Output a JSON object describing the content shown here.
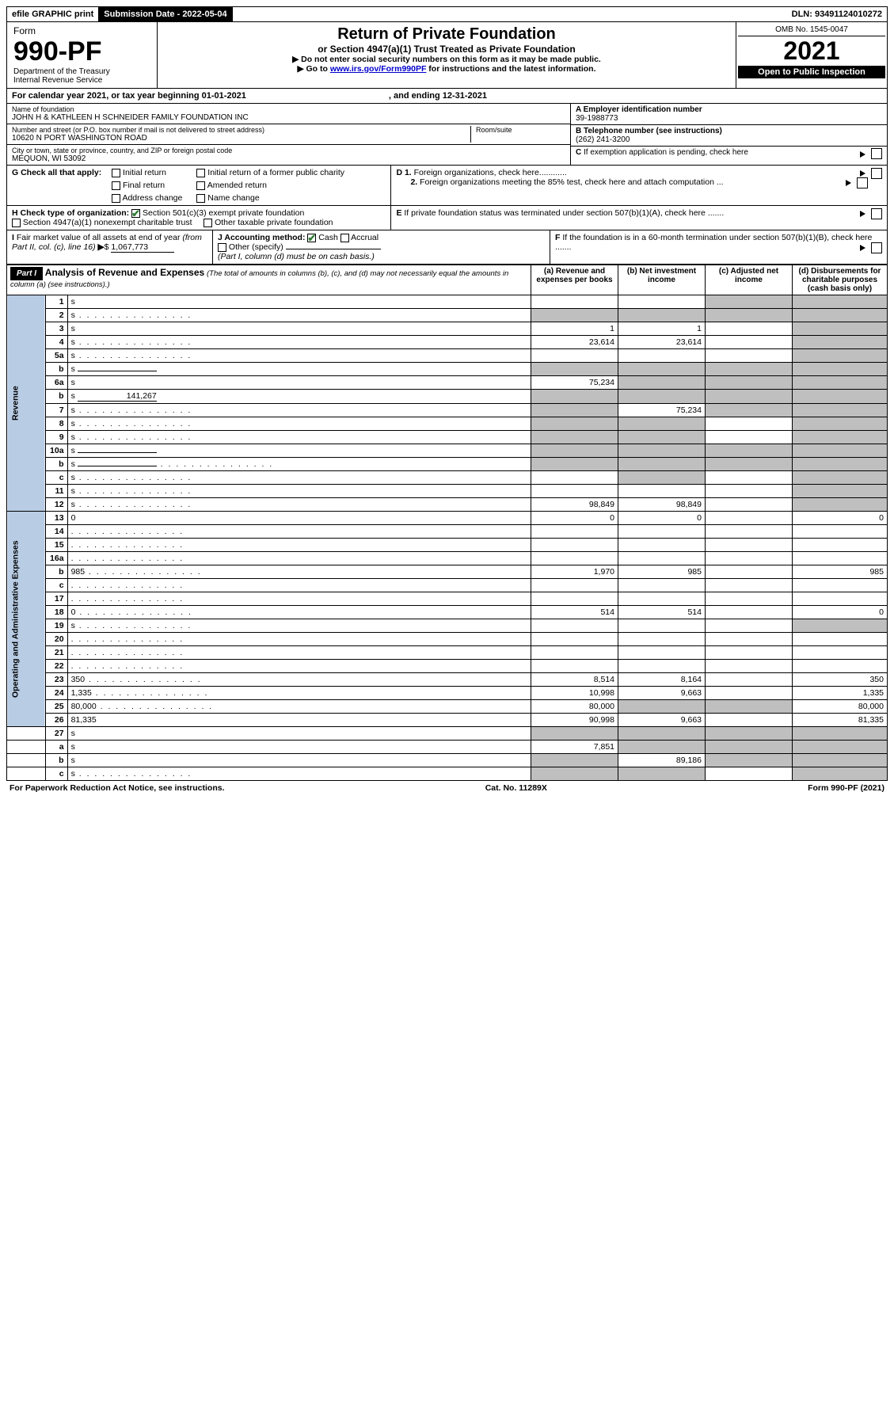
{
  "topbar": {
    "efile": "efile GRAPHIC print",
    "sub_label": "Submission Date - 2022-05-04",
    "dln": "DLN: 93491124010272"
  },
  "header": {
    "form_word": "Form",
    "form_no": "990-PF",
    "dept": "Department of the Treasury\nInternal Revenue Service",
    "title": "Return of Private Foundation",
    "subtitle": "or Section 4947(a)(1) Trust Treated as Private Foundation",
    "instr1": "▶ Do not enter social security numbers on this form as it may be made public.",
    "instr2_pre": "▶ Go to ",
    "instr2_link": "www.irs.gov/Form990PF",
    "instr2_post": " for instructions and the latest information.",
    "omb": "OMB No. 1545-0047",
    "year": "2021",
    "open": "Open to Public Inspection"
  },
  "cal": {
    "pre": "For calendar year 2021, or tax year beginning 01-01-2021",
    "mid": ", and ending 12-31-2021"
  },
  "info": {
    "name_lbl": "Name of foundation",
    "name": "JOHN H & KATHLEEN H SCHNEIDER FAMILY FOUNDATION INC",
    "addr_lbl": "Number and street (or P.O. box number if mail is not delivered to street address)",
    "addr": "10620 N PORT WASHINGTON ROAD",
    "room_lbl": "Room/suite",
    "city_lbl": "City or town, state or province, country, and ZIP or foreign postal code",
    "city": "MEQUON, WI  53092",
    "A_lbl": "A Employer identification number",
    "A": "39-1988773",
    "B_lbl": "B Telephone number (see instructions)",
    "B": "(262) 241-3200",
    "C": "C If exemption application is pending, check here",
    "D1": "D 1. Foreign organizations, check here............",
    "D2": "2. Foreign organizations meeting the 85% test, check here and attach computation ...",
    "E": "E  If private foundation status was terminated under section 507(b)(1)(A), check here .......",
    "F": "F  If the foundation is in a 60-month termination under section 507(b)(1)(B), check here ......."
  },
  "G": {
    "lbl": "G Check all that apply:",
    "opts": [
      "Initial return",
      "Final return",
      "Address change",
      "Initial return of a former public charity",
      "Amended return",
      "Name change"
    ]
  },
  "H": {
    "lbl": "H Check type of organization:",
    "o1": "Section 501(c)(3) exempt private foundation",
    "o2": "Section 4947(a)(1) nonexempt charitable trust",
    "o3": "Other taxable private foundation"
  },
  "I": {
    "lbl": "I Fair market value of all assets at end of year (from Part II, col. (c), line 16)",
    "val_pre": "▶ $",
    "val": "1,067,773"
  },
  "J": {
    "lbl": "J Accounting method:",
    "o1": "Cash",
    "o2": "Accrual",
    "o3": "Other (specify)",
    "note": "(Part I, column (d) must be on cash basis.)"
  },
  "part1": {
    "hdr": "Part I",
    "title": "Analysis of Revenue and Expenses",
    "title_note": "(The total of amounts in columns (b), (c), and (d) may not necessarily equal the amounts in column (a) (see instructions).)",
    "col_a": "(a)  Revenue and expenses per books",
    "col_b": "(b)  Net investment income",
    "col_c": "(c)  Adjusted net income",
    "col_d": "(d)  Disbursements for charitable purposes (cash basis only)"
  },
  "sections": {
    "revenue": "Revenue",
    "expenses": "Operating and Administrative Expenses"
  },
  "rows": [
    {
      "n": "1",
      "d": "s",
      "a": "",
      "b": "",
      "c": "s"
    },
    {
      "n": "2",
      "d": "s",
      "dots": true,
      "a": "s",
      "b": "s",
      "c": "s"
    },
    {
      "n": "3",
      "d": "s",
      "a": "1",
      "b": "1",
      "c": ""
    },
    {
      "n": "4",
      "d": "s",
      "dots": true,
      "a": "23,614",
      "b": "23,614",
      "c": ""
    },
    {
      "n": "5a",
      "d": "s",
      "dots": true,
      "a": "",
      "b": "",
      "c": ""
    },
    {
      "n": "b",
      "d": "s",
      "inline": true,
      "a": "s",
      "b": "s",
      "c": "s"
    },
    {
      "n": "6a",
      "d": "s",
      "a": "75,234",
      "b": "s",
      "c": "s"
    },
    {
      "n": "b",
      "d": "s",
      "inline": true,
      "inline_val": "141,267",
      "a": "s",
      "b": "s",
      "c": "s"
    },
    {
      "n": "7",
      "d": "s",
      "dots": true,
      "a": "s",
      "b": "75,234",
      "c": "s"
    },
    {
      "n": "8",
      "d": "s",
      "dots": true,
      "a": "s",
      "b": "s",
      "c": ""
    },
    {
      "n": "9",
      "d": "s",
      "dots": true,
      "a": "s",
      "b": "s",
      "c": ""
    },
    {
      "n": "10a",
      "d": "s",
      "inline": true,
      "a": "s",
      "b": "s",
      "c": "s"
    },
    {
      "n": "b",
      "d": "s",
      "dots": true,
      "inline": true,
      "a": "s",
      "b": "s",
      "c": "s"
    },
    {
      "n": "c",
      "d": "s",
      "dots": true,
      "a": "",
      "b": "s",
      "c": ""
    },
    {
      "n": "11",
      "d": "s",
      "dots": true,
      "a": "",
      "b": "",
      "c": ""
    },
    {
      "n": "12",
      "d": "s",
      "dots": true,
      "a": "98,849",
      "b": "98,849",
      "c": ""
    }
  ],
  "exp_rows": [
    {
      "n": "13",
      "d": "0",
      "a": "0",
      "b": "0",
      "c": ""
    },
    {
      "n": "14",
      "d": "",
      "dots": true,
      "a": "",
      "b": "",
      "c": ""
    },
    {
      "n": "15",
      "d": "",
      "dots": true,
      "a": "",
      "b": "",
      "c": ""
    },
    {
      "n": "16a",
      "d": "",
      "dots": true,
      "a": "",
      "b": "",
      "c": ""
    },
    {
      "n": "b",
      "d": "985",
      "dots": true,
      "a": "1,970",
      "b": "985",
      "c": ""
    },
    {
      "n": "c",
      "d": "",
      "dots": true,
      "a": "",
      "b": "",
      "c": ""
    },
    {
      "n": "17",
      "d": "",
      "dots": true,
      "a": "",
      "b": "",
      "c": ""
    },
    {
      "n": "18",
      "d": "0",
      "dots": true,
      "a": "514",
      "b": "514",
      "c": ""
    },
    {
      "n": "19",
      "d": "s",
      "dots": true,
      "a": "",
      "b": "",
      "c": ""
    },
    {
      "n": "20",
      "d": "",
      "dots": true,
      "a": "",
      "b": "",
      "c": ""
    },
    {
      "n": "21",
      "d": "",
      "dots": true,
      "a": "",
      "b": "",
      "c": ""
    },
    {
      "n": "22",
      "d": "",
      "dots": true,
      "a": "",
      "b": "",
      "c": ""
    },
    {
      "n": "23",
      "d": "350",
      "dots": true,
      "a": "8,514",
      "b": "8,164",
      "c": ""
    },
    {
      "n": "24",
      "d": "1,335",
      "dots": true,
      "a": "10,998",
      "b": "9,663",
      "c": ""
    },
    {
      "n": "25",
      "d": "80,000",
      "dots": true,
      "a": "80,000",
      "b": "s",
      "c": "s"
    },
    {
      "n": "26",
      "d": "81,335",
      "a": "90,998",
      "b": "9,663",
      "c": ""
    }
  ],
  "bottom_rows": [
    {
      "n": "27",
      "d": "s",
      "a": "s",
      "b": "s",
      "c": "s"
    },
    {
      "n": "a",
      "d": "s",
      "a": "7,851",
      "b": "s",
      "c": "s"
    },
    {
      "n": "b",
      "d": "s",
      "a": "s",
      "b": "89,186",
      "c": "s"
    },
    {
      "n": "c",
      "d": "s",
      "dots": true,
      "a": "s",
      "b": "s",
      "c": ""
    }
  ],
  "footer": {
    "left": "For Paperwork Reduction Act Notice, see instructions.",
    "mid": "Cat. No. 11289X",
    "right": "Form 990-PF (2021)"
  },
  "colors": {
    "link": "#0000cc",
    "vlabel_bg": "#b8cce4",
    "shade": "#bfbfbf",
    "check": "#2e7d32"
  }
}
